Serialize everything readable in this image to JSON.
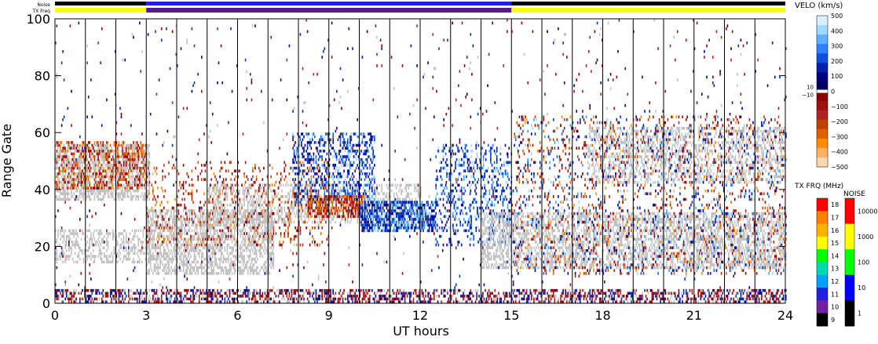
{
  "chart_data": {
    "type": "heatmap",
    "title": "",
    "xlabel": "UT hours",
    "ylabel": "Range Gate",
    "x_ticks": [
      "0",
      "3",
      "6",
      "9",
      "12",
      "15",
      "18",
      "21",
      "24"
    ],
    "y_ticks": [
      "0",
      "20",
      "40",
      "60",
      "80",
      "100"
    ],
    "xlim": [
      0,
      24
    ],
    "ylim": [
      0,
      100
    ],
    "vertical_hour_lines": [
      1,
      2,
      3,
      4,
      5,
      6,
      7,
      8,
      9,
      10,
      11,
      12,
      13,
      14,
      15,
      16,
      17,
      18,
      19,
      20,
      21,
      22,
      23
    ],
    "grid": false,
    "top_bars": {
      "noise_label": "Noise",
      "txfreq_label": "TX Freq",
      "txfreq_segments": [
        {
          "start": 0,
          "end": 3,
          "color": "#ffff00"
        },
        {
          "start": 3,
          "end": 15,
          "color": "#5a1890"
        },
        {
          "start": 15,
          "end": 24,
          "color": "#ffff00"
        }
      ],
      "noise_segments": [
        {
          "start": 0,
          "end": 3,
          "color": "#000000"
        },
        {
          "start": 3,
          "end": 15,
          "color": "#2020e0"
        },
        {
          "start": 15,
          "end": 24,
          "color": "#000000"
        }
      ]
    },
    "velocity_scale": {
      "title": "VELO (km/s)",
      "ticks": [
        "500",
        "400",
        "300",
        "200",
        "100",
        "0",
        "−100",
        "−200",
        "−300",
        "−400",
        "−500"
      ],
      "ground_scatter_labels": [
        "10",
        "−10"
      ]
    },
    "txfreq_scale": {
      "title": "TX FRQ (MHz)",
      "ticks": [
        "18",
        "17",
        "16",
        "15",
        "14",
        "13",
        "12",
        "11",
        "10",
        "9"
      ],
      "colors": [
        "#ff0000",
        "#ff7f00",
        "#ffb000",
        "#ffff00",
        "#00ff00",
        "#00d8b0",
        "#00a0ff",
        "#2020e0",
        "#7020a0",
        "#000000"
      ]
    },
    "noise_scale": {
      "title": "NOISE",
      "ticks": [
        "10000",
        "1000",
        "100",
        "10",
        "1"
      ],
      "colors": [
        "#ff0000",
        "#ffff00",
        "#00ff00",
        "#0000ff",
        "#000000"
      ]
    },
    "scatter_regions": [
      {
        "name": "ground scatter early",
        "kind": "ground",
        "t": [
          0,
          3.1
        ],
        "g": [
          36,
          56
        ],
        "density": 0.6
      },
      {
        "name": "ground scatter low early",
        "kind": "ground",
        "t": [
          0,
          3.2
        ],
        "g": [
          14,
          26
        ],
        "density": 0.4
      },
      {
        "name": "velocity early",
        "kind": "neg",
        "t": [
          0,
          3
        ],
        "g": [
          40,
          57
        ],
        "density": 0.35
      },
      {
        "name": "ground scatter morning",
        "kind": "ground",
        "t": [
          3,
          7.2
        ],
        "g": [
          10,
          33
        ],
        "density": 0.55
      },
      {
        "name": "ground band mid",
        "kind": "ground",
        "t": [
          5,
          12
        ],
        "g": [
          28,
          42
        ],
        "density": 0.4
      },
      {
        "name": "velocity morning",
        "kind": "neg",
        "t": [
          3,
          9
        ],
        "g": [
          20,
          50
        ],
        "density": 0.12
      },
      {
        "name": "blue patch 9h",
        "kind": "pos",
        "t": [
          7.8,
          10.5
        ],
        "g": [
          35,
          60
        ],
        "density": 0.35
      },
      {
        "name": "red patch 9h",
        "kind": "neg",
        "t": [
          8.3,
          10.2
        ],
        "g": [
          30,
          38
        ],
        "density": 0.6
      },
      {
        "name": "blue band 10-12h",
        "kind": "pos",
        "t": [
          10,
          12.5
        ],
        "g": [
          25,
          36
        ],
        "density": 0.7
      },
      {
        "name": "blue streak 12-15h",
        "kind": "pos",
        "t": [
          12.5,
          15
        ],
        "g": [
          20,
          56
        ],
        "density": 0.25
      },
      {
        "name": "ground afternoon",
        "kind": "ground",
        "t": [
          14,
          24
        ],
        "g": [
          12,
          32
        ],
        "density": 0.5
      },
      {
        "name": "ground evening upper",
        "kind": "ground",
        "t": [
          17.5,
          24
        ],
        "g": [
          42,
          62
        ],
        "density": 0.35
      },
      {
        "name": "velocity afternoon",
        "kind": "neg",
        "t": [
          15,
          24
        ],
        "g": [
          10,
          66
        ],
        "density": 0.08
      },
      {
        "name": "blue afternoon",
        "kind": "pos",
        "t": [
          15,
          24
        ],
        "g": [
          10,
          66
        ],
        "density": 0.06
      },
      {
        "name": "near range band",
        "kind": "mix",
        "t": [
          0,
          24
        ],
        "g": [
          0,
          5
        ],
        "density": 0.5
      },
      {
        "name": "sparse noise",
        "kind": "mix",
        "t": [
          0,
          24
        ],
        "g": [
          5,
          100
        ],
        "density": 0.015
      }
    ],
    "legend_placement": "right"
  }
}
